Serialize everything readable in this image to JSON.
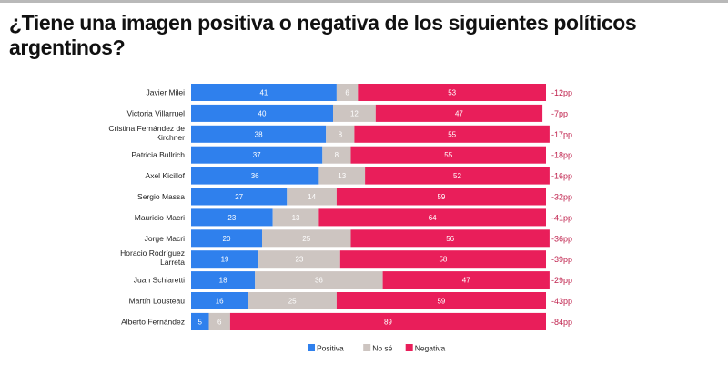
{
  "title": "¿Tiene una imagen positiva o negativa de los siguientes políticos argentinos?",
  "chart_data": {
    "type": "bar",
    "orientation": "horizontal",
    "stacked": true,
    "title": "¿Tiene una imagen positiva o negativa de los siguientes políticos argentinos?",
    "xlabel": "",
    "ylabel": "",
    "xlim": [
      0,
      100
    ],
    "grid": false,
    "legend_position": "bottom-center",
    "categories": [
      "Javier Milei",
      "Victoria Villarruel",
      "Cristina Fernández de Kirchner",
      "Patricia Bullrich",
      "Axel Kicillof",
      "Sergio Massa",
      "Mauricio Macri",
      "Jorge Macri",
      "Horacio Rodríguez Larreta",
      "Juan Schiaretti",
      "Martín Lousteau",
      "Alberto Fernández"
    ],
    "category_lines": [
      [
        "Javier Milei"
      ],
      [
        "Victoria Villarruel"
      ],
      [
        "Cristina Fernández de",
        "Kirchner"
      ],
      [
        "Patricia Bullrich"
      ],
      [
        "Axel Kicillof"
      ],
      [
        "Sergio Massa"
      ],
      [
        "Mauricio Macri"
      ],
      [
        "Jorge Macri"
      ],
      [
        "Horacio Rodríguez",
        "Larreta"
      ],
      [
        "Juan Schiaretti"
      ],
      [
        "Martín Lousteau"
      ],
      [
        "Alberto Fernández"
      ]
    ],
    "series": [
      {
        "name": "Positiva",
        "color": "#2f80ed",
        "values": [
          41,
          40,
          38,
          37,
          36,
          27,
          23,
          20,
          19,
          18,
          16,
          5
        ]
      },
      {
        "name": "No sé",
        "color": "#cdc5c1",
        "values": [
          6,
          12,
          8,
          8,
          13,
          14,
          13,
          25,
          23,
          36,
          25,
          6
        ]
      },
      {
        "name": "Negativa",
        "color": "#e91e5a",
        "values": [
          53,
          47,
          55,
          55,
          52,
          59,
          64,
          56,
          58,
          47,
          59,
          89
        ]
      }
    ],
    "net_labels": [
      "-12pp",
      "-7pp",
      "-17pp",
      "-18pp",
      "-16pp",
      "-32pp",
      "-41pp",
      "-36pp",
      "-39pp",
      "-29pp",
      "-43pp",
      "-84pp"
    ],
    "net_color": "#c0234e"
  }
}
